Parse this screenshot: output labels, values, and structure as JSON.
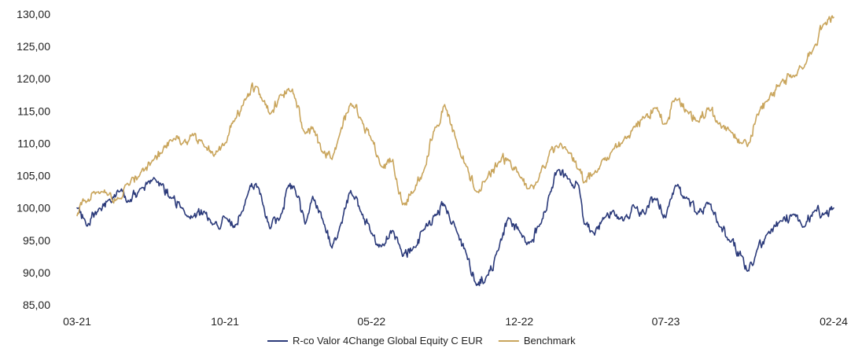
{
  "chart_data": {
    "type": "line",
    "title": "",
    "xlabel": "",
    "ylabel": "",
    "ylim": [
      85,
      130
    ],
    "yticks": [
      "85,00",
      "90,00",
      "95,00",
      "100,00",
      "105,00",
      "110,00",
      "115,00",
      "120,00",
      "125,00",
      "130,00"
    ],
    "ytick_values": [
      85,
      90,
      95,
      100,
      105,
      110,
      115,
      120,
      125,
      130
    ],
    "xlim": [
      "2021-03-01",
      "2024-02-29"
    ],
    "xticks": [
      "03-21",
      "10-21",
      "05-22",
      "12-22",
      "07-23",
      "02-24"
    ],
    "xtick_dates": [
      "2021-03-01",
      "2021-10-01",
      "2022-05-01",
      "2022-12-01",
      "2023-07-01",
      "2024-02-29"
    ],
    "grid": false,
    "legend_position": "bottom-center",
    "series": [
      {
        "name": "R-co Valor 4Change Global Equity C EUR",
        "color": "#2b3a7a",
        "points": [
          [
            "2021-03-01",
            100.0
          ],
          [
            "2021-03-15",
            97.2
          ],
          [
            "2021-04-01",
            99.8
          ],
          [
            "2021-04-15",
            101.2
          ],
          [
            "2021-05-01",
            102.5
          ],
          [
            "2021-05-15",
            101.0
          ],
          [
            "2021-06-01",
            103.0
          ],
          [
            "2021-06-20",
            104.7
          ],
          [
            "2021-07-01",
            103.5
          ],
          [
            "2021-07-15",
            101.5
          ],
          [
            "2021-08-01",
            100.0
          ],
          [
            "2021-08-15",
            98.5
          ],
          [
            "2021-09-01",
            99.5
          ],
          [
            "2021-09-15",
            97.5
          ],
          [
            "2021-10-01",
            98.5
          ],
          [
            "2021-10-15",
            97.0
          ],
          [
            "2021-11-01",
            101.5
          ],
          [
            "2021-11-15",
            103.8
          ],
          [
            "2021-11-25",
            100.5
          ],
          [
            "2021-12-05",
            96.8
          ],
          [
            "2021-12-20",
            98.5
          ],
          [
            "2022-01-01",
            103.5
          ],
          [
            "2022-01-10",
            103.0
          ],
          [
            "2022-01-25",
            97.5
          ],
          [
            "2022-02-05",
            101.8
          ],
          [
            "2022-02-20",
            98.0
          ],
          [
            "2022-03-05",
            93.8
          ],
          [
            "2022-03-15",
            96.5
          ],
          [
            "2022-04-01",
            102.7
          ],
          [
            "2022-04-15",
            99.5
          ],
          [
            "2022-05-01",
            96.0
          ],
          [
            "2022-05-15",
            94.0
          ],
          [
            "2022-06-01",
            96.5
          ],
          [
            "2022-06-15",
            92.5
          ],
          [
            "2022-07-01",
            94.0
          ],
          [
            "2022-07-15",
            96.5
          ],
          [
            "2022-08-01",
            99.0
          ],
          [
            "2022-08-15",
            100.5
          ],
          [
            "2022-09-01",
            96.5
          ],
          [
            "2022-09-15",
            93.0
          ],
          [
            "2022-09-30",
            88.0
          ],
          [
            "2022-10-15",
            89.5
          ],
          [
            "2022-11-01",
            93.5
          ],
          [
            "2022-11-15",
            98.5
          ],
          [
            "2022-12-01",
            96.5
          ],
          [
            "2022-12-15",
            94.5
          ],
          [
            "2023-01-01",
            97.5
          ],
          [
            "2023-01-15",
            102.5
          ],
          [
            "2023-01-25",
            105.8
          ],
          [
            "2023-02-10",
            104.5
          ],
          [
            "2023-02-25",
            103.5
          ],
          [
            "2023-03-05",
            97.5
          ],
          [
            "2023-03-20",
            95.8
          ],
          [
            "2023-04-01",
            98.5
          ],
          [
            "2023-04-15",
            99.5
          ],
          [
            "2023-05-01",
            98.0
          ],
          [
            "2023-05-15",
            100.5
          ],
          [
            "2023-06-01",
            99.0
          ],
          [
            "2023-06-15",
            101.5
          ],
          [
            "2023-07-01",
            98.5
          ],
          [
            "2023-07-15",
            103.5
          ],
          [
            "2023-08-01",
            101.5
          ],
          [
            "2023-08-15",
            99.0
          ],
          [
            "2023-09-01",
            100.8
          ],
          [
            "2023-09-15",
            97.5
          ],
          [
            "2023-10-01",
            95.0
          ],
          [
            "2023-10-20",
            92.5
          ],
          [
            "2023-10-27",
            90.2
          ],
          [
            "2023-11-10",
            93.5
          ],
          [
            "2023-11-25",
            96.0
          ],
          [
            "2023-12-15",
            98.0
          ],
          [
            "2024-01-01",
            99.0
          ],
          [
            "2024-01-15",
            97.0
          ],
          [
            "2024-02-01",
            99.5
          ],
          [
            "2024-02-15",
            99.0
          ],
          [
            "2024-02-29",
            100.0
          ]
        ]
      },
      {
        "name": "Benchmark",
        "color": "#c9a55c",
        "points": [
          [
            "2021-03-01",
            98.8
          ],
          [
            "2021-03-15",
            101.0
          ],
          [
            "2021-04-01",
            102.5
          ],
          [
            "2021-04-15",
            102.0
          ],
          [
            "2021-05-01",
            101.5
          ],
          [
            "2021-05-15",
            103.5
          ],
          [
            "2021-06-01",
            105.5
          ],
          [
            "2021-06-20",
            107.5
          ],
          [
            "2021-07-01",
            108.5
          ],
          [
            "2021-07-15",
            110.5
          ],
          [
            "2021-08-01",
            110.0
          ],
          [
            "2021-08-15",
            111.5
          ],
          [
            "2021-09-01",
            109.5
          ],
          [
            "2021-09-15",
            108.0
          ],
          [
            "2021-10-01",
            110.0
          ],
          [
            "2021-10-15",
            113.5
          ],
          [
            "2021-11-01",
            117.0
          ],
          [
            "2021-11-15",
            118.8
          ],
          [
            "2021-11-25",
            116.5
          ],
          [
            "2021-12-05",
            114.5
          ],
          [
            "2021-12-20",
            117.5
          ],
          [
            "2022-01-01",
            118.5
          ],
          [
            "2022-01-10",
            117.0
          ],
          [
            "2022-01-25",
            111.5
          ],
          [
            "2022-02-05",
            112.5
          ],
          [
            "2022-02-20",
            108.5
          ],
          [
            "2022-03-05",
            107.5
          ],
          [
            "2022-03-15",
            111.0
          ],
          [
            "2022-04-01",
            116.2
          ],
          [
            "2022-04-15",
            114.0
          ],
          [
            "2022-05-01",
            110.5
          ],
          [
            "2022-05-15",
            106.5
          ],
          [
            "2022-06-01",
            107.5
          ],
          [
            "2022-06-15",
            100.5
          ],
          [
            "2022-07-01",
            102.5
          ],
          [
            "2022-07-15",
            105.5
          ],
          [
            "2022-08-01",
            112.5
          ],
          [
            "2022-08-15",
            116.0
          ],
          [
            "2022-09-01",
            110.5
          ],
          [
            "2022-09-15",
            106.5
          ],
          [
            "2022-09-30",
            102.5
          ],
          [
            "2022-10-15",
            104.5
          ],
          [
            "2022-11-01",
            107.0
          ],
          [
            "2022-11-15",
            107.5
          ],
          [
            "2022-12-01",
            105.0
          ],
          [
            "2022-12-15",
            103.0
          ],
          [
            "2023-01-01",
            105.5
          ],
          [
            "2023-01-15",
            109.0
          ],
          [
            "2023-01-25",
            109.5
          ],
          [
            "2023-02-10",
            108.5
          ],
          [
            "2023-02-25",
            106.0
          ],
          [
            "2023-03-05",
            104.0
          ],
          [
            "2023-03-20",
            105.5
          ],
          [
            "2023-04-01",
            107.5
          ],
          [
            "2023-04-15",
            109.0
          ],
          [
            "2023-05-01",
            110.5
          ],
          [
            "2023-05-15",
            112.5
          ],
          [
            "2023-06-01",
            114.0
          ],
          [
            "2023-06-15",
            115.5
          ],
          [
            "2023-07-01",
            113.0
          ],
          [
            "2023-07-15",
            117.0
          ],
          [
            "2023-08-01",
            115.0
          ],
          [
            "2023-08-15",
            113.5
          ],
          [
            "2023-09-01",
            115.5
          ],
          [
            "2023-09-15",
            113.0
          ],
          [
            "2023-10-01",
            112.0
          ],
          [
            "2023-10-20",
            110.0
          ],
          [
            "2023-10-27",
            109.5
          ],
          [
            "2023-11-10",
            114.5
          ],
          [
            "2023-11-25",
            116.5
          ],
          [
            "2023-12-15",
            119.5
          ],
          [
            "2024-01-01",
            120.5
          ],
          [
            "2024-01-15",
            121.5
          ],
          [
            "2024-02-01",
            125.0
          ],
          [
            "2024-02-15",
            128.5
          ],
          [
            "2024-02-29",
            129.5
          ]
        ]
      }
    ]
  }
}
